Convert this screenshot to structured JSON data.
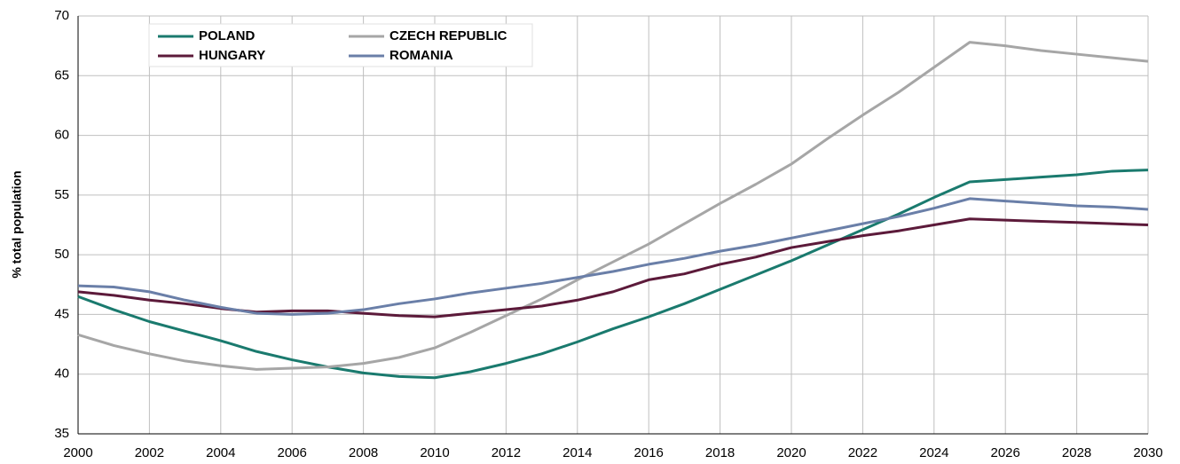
{
  "chart_data": {
    "type": "line",
    "y_label": "% total population",
    "x": [
      2000,
      2001,
      2002,
      2003,
      2004,
      2005,
      2006,
      2007,
      2008,
      2009,
      2010,
      2011,
      2012,
      2013,
      2014,
      2015,
      2016,
      2017,
      2018,
      2019,
      2020,
      2021,
      2022,
      2023,
      2024,
      2025,
      2026,
      2027,
      2028,
      2029,
      2030
    ],
    "series": [
      {
        "name": "POLAND",
        "color": "#1a7a6e",
        "values": [
          46.5,
          45.4,
          44.4,
          43.6,
          42.8,
          41.9,
          41.2,
          40.6,
          40.1,
          39.8,
          39.7,
          40.2,
          40.9,
          41.7,
          42.7,
          43.8,
          44.8,
          45.9,
          47.1,
          48.3,
          49.5,
          50.8,
          52.1,
          53.4,
          54.8,
          56.1,
          56.3,
          56.5,
          56.7,
          57.0,
          57.1
        ]
      },
      {
        "name": "CZECH REPUBLIC",
        "color": "#a6a6a6",
        "values": [
          43.3,
          42.4,
          41.7,
          41.1,
          40.7,
          40.4,
          40.5,
          40.6,
          40.9,
          41.4,
          42.2,
          43.5,
          44.9,
          46.3,
          47.9,
          49.4,
          50.9,
          52.6,
          54.3,
          55.9,
          57.6,
          59.7,
          61.7,
          63.6,
          65.7,
          67.8,
          67.5,
          67.1,
          66.8,
          66.5,
          66.2
        ]
      },
      {
        "name": "HUNGARY",
        "color": "#5c1a3a",
        "values": [
          46.9,
          46.6,
          46.2,
          45.9,
          45.5,
          45.2,
          45.3,
          45.3,
          45.1,
          44.9,
          44.8,
          45.1,
          45.4,
          45.7,
          46.2,
          46.9,
          47.9,
          48.4,
          49.2,
          49.8,
          50.6,
          51.1,
          51.6,
          52.0,
          52.5,
          53.0,
          52.9,
          52.8,
          52.7,
          52.6,
          52.5
        ]
      },
      {
        "name": "ROMANIA",
        "color": "#6a7fa8",
        "values": [
          47.4,
          47.3,
          46.9,
          46.2,
          45.6,
          45.1,
          45.0,
          45.1,
          45.4,
          45.9,
          46.3,
          46.8,
          47.2,
          47.6,
          48.1,
          48.6,
          49.2,
          49.7,
          50.3,
          50.8,
          51.4,
          52.0,
          52.6,
          53.2,
          53.9,
          54.7,
          54.5,
          54.3,
          54.1,
          54.0,
          53.8
        ]
      }
    ],
    "xlim": [
      2000,
      2030
    ],
    "xticks": [
      2000,
      2002,
      2004,
      2006,
      2008,
      2010,
      2012,
      2014,
      2016,
      2018,
      2020,
      2022,
      2024,
      2026,
      2028,
      2030
    ],
    "ylim": [
      35,
      70
    ],
    "yticks": [
      35,
      40,
      45,
      50,
      55,
      60,
      65,
      70
    ],
    "grid": true,
    "legend": "upper left"
  }
}
